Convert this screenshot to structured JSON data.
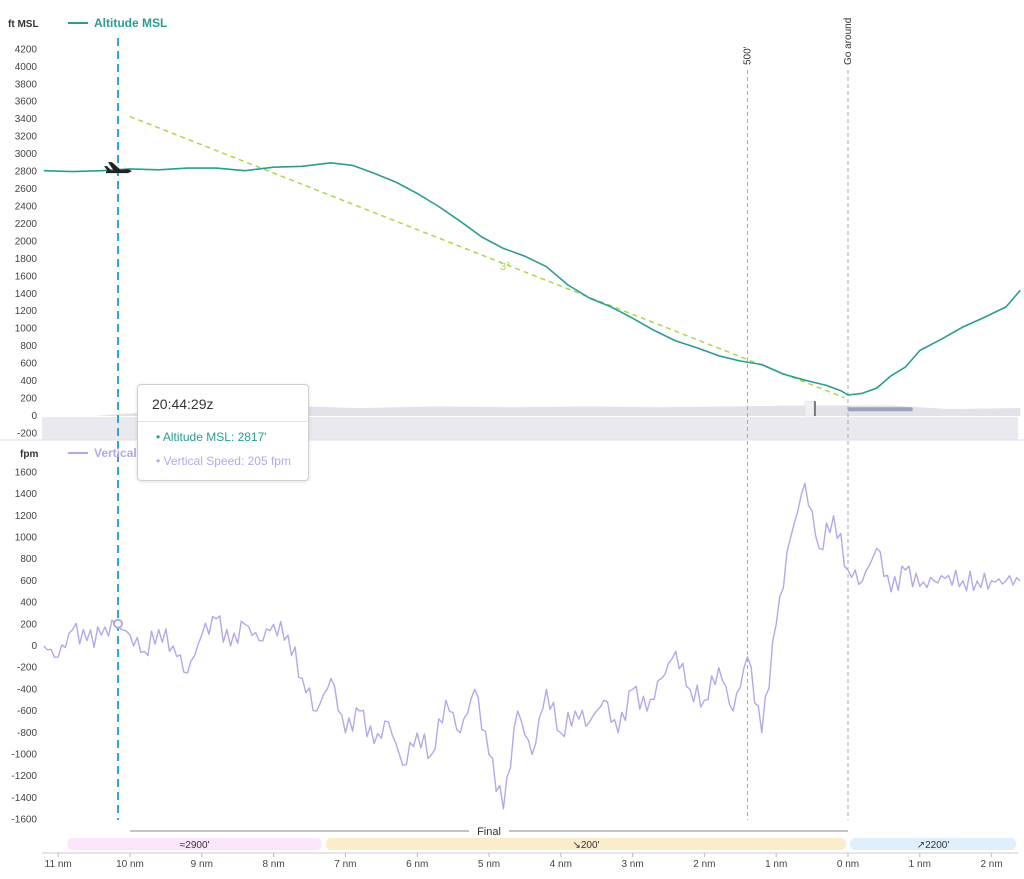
{
  "chart_data": [
    {
      "type": "line",
      "title": "",
      "ylabel": "ft MSL",
      "ylim": [
        -200,
        4300
      ],
      "yticks": [
        4200,
        4000,
        3800,
        3600,
        3400,
        3200,
        3000,
        2800,
        2600,
        2400,
        2200,
        2000,
        1800,
        1600,
        1400,
        1200,
        1000,
        800,
        600,
        400,
        200,
        0,
        -200
      ],
      "series": [
        {
          "name": "Altitude MSL",
          "color": "#2a9d8f",
          "x": [
            11.2,
            10.8,
            10.4,
            10.0,
            9.6,
            9.2,
            8.8,
            8.4,
            8.0,
            7.6,
            7.2,
            6.9,
            6.6,
            6.3,
            6.0,
            5.7,
            5.4,
            5.1,
            4.8,
            4.5,
            4.2,
            3.9,
            3.6,
            3.3,
            3.0,
            2.7,
            2.4,
            2.1,
            1.8,
            1.5,
            1.2,
            0.9,
            0.6,
            0.3,
            0.1,
            0.0,
            -0.2,
            -0.4,
            -0.6,
            -0.8,
            -1.0,
            -1.3,
            -1.6,
            -1.9,
            -2.2,
            -2.4
          ],
          "y": [
            2810,
            2800,
            2810,
            2830,
            2820,
            2840,
            2840,
            2810,
            2850,
            2860,
            2900,
            2870,
            2780,
            2680,
            2550,
            2400,
            2230,
            2050,
            1920,
            1830,
            1710,
            1500,
            1350,
            1250,
            1120,
            980,
            860,
            780,
            690,
            630,
            590,
            480,
            410,
            350,
            290,
            240,
            260,
            320,
            460,
            560,
            750,
            880,
            1020,
            1130,
            1250,
            1440
          ]
        }
      ],
      "annotations": [
        {
          "type": "glideslope",
          "label": "3°",
          "color": "#a8d84b",
          "x": [
            10.0,
            0.05
          ],
          "y": [
            3430,
            210
          ]
        },
        {
          "type": "vline",
          "label": "500'",
          "x": 1.4
        },
        {
          "type": "vline",
          "label": "Go around",
          "x": 0.0
        }
      ]
    },
    {
      "type": "line",
      "title": "",
      "ylabel": "fpm",
      "ylim": [
        -1700,
        1750
      ],
      "yticks": [
        1600,
        1400,
        1200,
        1000,
        800,
        600,
        400,
        200,
        0,
        -200,
        -400,
        -600,
        -800,
        -1000,
        -1200,
        -1400,
        -1600
      ],
      "series": [
        {
          "name": "Vertical Speed",
          "color": "#b3a8ea",
          "x": [
            11.2,
            11.0,
            10.8,
            10.6,
            10.4,
            10.2,
            10.0,
            9.8,
            9.6,
            9.4,
            9.2,
            9.0,
            8.8,
            8.6,
            8.4,
            8.2,
            8.0,
            7.8,
            7.6,
            7.4,
            7.2,
            7.0,
            6.8,
            6.6,
            6.4,
            6.2,
            6.0,
            5.8,
            5.6,
            5.4,
            5.2,
            5.0,
            4.8,
            4.6,
            4.4,
            4.2,
            4.0,
            3.8,
            3.6,
            3.4,
            3.2,
            3.0,
            2.8,
            2.6,
            2.4,
            2.2,
            2.0,
            1.8,
            1.6,
            1.4,
            1.2,
            1.0,
            0.8,
            0.6,
            0.4,
            0.2,
            0.0,
            -0.2,
            -0.4,
            -0.6,
            -0.8,
            -1.0,
            -1.2,
            -1.4,
            -1.6,
            -1.8,
            -2.0,
            -2.2,
            -2.4
          ],
          "y": [
            0,
            -100,
            150,
            50,
            100,
            200,
            100,
            -50,
            150,
            0,
            -250,
            100,
            250,
            0,
            200,
            50,
            200,
            100,
            -300,
            -600,
            -300,
            -800,
            -600,
            -900,
            -700,
            -1100,
            -800,
            -1000,
            -500,
            -800,
            -400,
            -1000,
            -1500,
            -600,
            -1000,
            -400,
            -800,
            -600,
            -700,
            -500,
            -800,
            -400,
            -600,
            -300,
            -50,
            -400,
            -500,
            -200,
            -600,
            -100,
            -800,
            200,
            1000,
            1500,
            900,
            1200,
            700,
            600,
            900,
            500,
            700,
            550,
            600,
            650,
            600,
            600,
            600,
            600,
            600
          ],
          "tooltip_value": 205
        }
      ]
    }
  ],
  "tooltip": {
    "time": "20:44:29z",
    "altitude_line": "Altitude MSL: 2817'",
    "vs_line": "Vertical Speed: 205 fpm"
  },
  "x_axis": {
    "labels": [
      "11 nm",
      "10 nm",
      "9 nm",
      "8 nm",
      "7 nm",
      "6 nm",
      "5 nm",
      "4 nm",
      "3 nm",
      "2 nm",
      "1 nm",
      "0 nm",
      "1 nm",
      "2 nm"
    ],
    "values": [
      11,
      10,
      9,
      8,
      7,
      6,
      5,
      4,
      3,
      2,
      1,
      0,
      -1,
      -2
    ]
  },
  "phases": {
    "final_label": "Final",
    "segments": [
      {
        "label": "≈2900'",
        "color": "#fbe6fb",
        "x": [
          10.9,
          7.3
        ]
      },
      {
        "label": "↘200'",
        "color": "#fbeccb",
        "x": [
          7.3,
          0.0
        ]
      },
      {
        "label": "↗2200'",
        "color": "#dff0fc",
        "x": [
          0.0,
          -2.5
        ]
      }
    ]
  },
  "legend": {
    "altitude": "Altitude MSL",
    "vs": "Vertical Speed"
  },
  "markers": {
    "cursor_x": 10.0,
    "aircraft_icon": "airplane-icon"
  }
}
